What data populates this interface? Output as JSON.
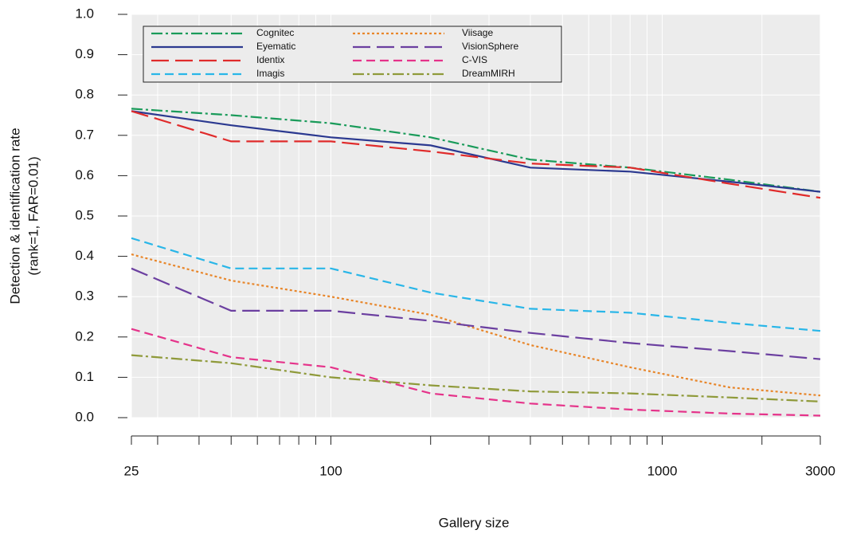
{
  "chart_data": {
    "type": "line",
    "x_label": "Gallery size",
    "y_label": [
      "Detection & identification rate",
      "(rank=1, FAR=0.01)"
    ],
    "x": [
      25,
      50,
      100,
      200,
      400,
      800,
      1600,
      3000
    ],
    "xlim": [
      25,
      3000
    ],
    "log_x": true,
    "xticks": [
      25,
      100,
      1000,
      3000
    ],
    "xminorticks": [
      30,
      40,
      50,
      60,
      70,
      80,
      90,
      200,
      300,
      400,
      500,
      600,
      700,
      800,
      900,
      2000
    ],
    "ylim": [
      0,
      1
    ],
    "yticks": [
      {
        "value": 0,
        "label": "0.0"
      },
      {
        "value": 0.1,
        "label": "0.1"
      },
      {
        "value": 0.2,
        "label": "0.2"
      },
      {
        "value": 0.3,
        "label": "0.3"
      },
      {
        "value": 0.4,
        "label": "0.4"
      },
      {
        "value": 0.5,
        "label": "0.5"
      },
      {
        "value": 0.6,
        "label": "0.6"
      },
      {
        "value": 0.7,
        "label": "0.7"
      },
      {
        "value": 0.8,
        "label": "0.8"
      },
      {
        "value": 0.9,
        "label": "0.9"
      },
      {
        "value": 1,
        "label": "1.0"
      }
    ],
    "grid": true,
    "legend": "upper left",
    "series": [
      {
        "name": "Cognitec",
        "color": "#1a9b5a",
        "dash": "dashdot",
        "values": [
          0.766,
          0.75,
          0.73,
          0.695,
          0.64,
          0.62,
          0.59,
          0.56
        ]
      },
      {
        "name": "Eyematic",
        "color": "#2b3990",
        "dash": "solid",
        "values": [
          0.76,
          0.725,
          0.695,
          0.675,
          0.62,
          0.61,
          0.585,
          0.56
        ]
      },
      {
        "name": "Identix",
        "color": "#e02b2b",
        "dash": "longdash",
        "values": [
          0.76,
          0.685,
          0.685,
          0.66,
          0.63,
          0.62,
          0.58,
          0.545
        ]
      },
      {
        "name": "Imagis",
        "color": "#29b6e8",
        "dash": "dash",
        "values": [
          0.445,
          0.37,
          0.37,
          0.31,
          0.27,
          0.26,
          0.235,
          0.215
        ]
      },
      {
        "name": "Viisage",
        "color": "#e8862a",
        "dash": "dotted",
        "values": [
          0.405,
          0.34,
          0.3,
          0.255,
          0.18,
          0.125,
          0.075,
          0.055
        ]
      },
      {
        "name": "VisionSphere",
        "color": "#6b3fa0",
        "dash": "longdash",
        "values": [
          0.37,
          0.265,
          0.265,
          0.24,
          0.21,
          0.185,
          0.165,
          0.145
        ]
      },
      {
        "name": "C-VIS",
        "color": "#e5338a",
        "dash": "dash",
        "values": [
          0.22,
          0.15,
          0.125,
          0.06,
          0.035,
          0.02,
          0.01,
          0.005
        ]
      },
      {
        "name": "DreamMIRH",
        "color": "#8f9a3a",
        "dash": "dashdot",
        "values": [
          0.155,
          0.135,
          0.1,
          0.08,
          0.065,
          0.06,
          0.05,
          0.04
        ]
      }
    ]
  }
}
